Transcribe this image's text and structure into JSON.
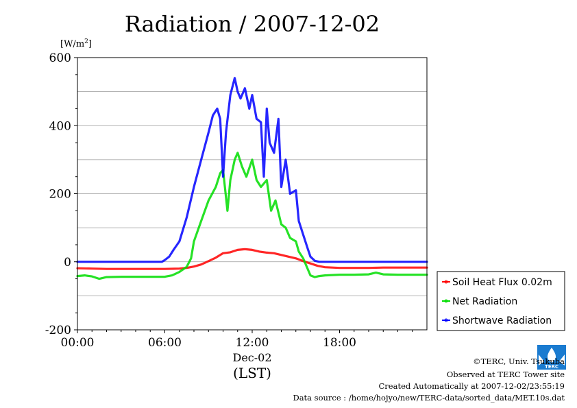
{
  "chart_data": {
    "type": "line",
    "title": "Radiation / 2007-12-02",
    "ylabel": "[W/m",
    "ylabel_sup": "2",
    "ylabel_end": "]",
    "xlabel": "(LST)",
    "x_date_label": "Dec-02",
    "x_tick_labels": [
      "00:00",
      "06:00",
      "12:00",
      "18:00"
    ],
    "y_tick_labels": [
      "600",
      "400",
      "200",
      "0",
      "-200"
    ],
    "xlim": [
      0,
      24
    ],
    "ylim": [
      -200,
      600
    ],
    "grid": "horizontal",
    "legend_position": "right",
    "series": [
      {
        "name": "Soil Heat Flux 0.02m",
        "color": "#ff0000",
        "x": [
          0,
          1,
          2,
          3,
          4,
          5,
          6,
          7,
          7.5,
          8,
          8.5,
          9,
          9.5,
          10,
          10.5,
          11,
          11.5,
          12,
          12.5,
          13,
          13.5,
          14,
          14.5,
          15,
          15.5,
          16,
          16.5,
          17,
          18,
          19,
          20,
          21,
          22,
          23,
          24
        ],
        "y": [
          -19,
          -20,
          -21,
          -21,
          -21,
          -21,
          -21,
          -20,
          -18,
          -14,
          -8,
          2,
          12,
          25,
          28,
          35,
          37,
          35,
          30,
          27,
          25,
          20,
          15,
          10,
          2,
          -5,
          -12,
          -16,
          -18,
          -18,
          -18,
          -17,
          -17,
          -17,
          -17
        ]
      },
      {
        "name": "Net Radiation",
        "color": "#00dd00",
        "x": [
          0,
          0.5,
          1,
          1.5,
          2,
          3,
          4,
          5,
          6,
          6.5,
          7,
          7.5,
          7.8,
          8,
          8.5,
          9,
          9.5,
          9.8,
          10,
          10.3,
          10.5,
          10.8,
          11,
          11.3,
          11.6,
          12,
          12.3,
          12.6,
          13,
          13.3,
          13.6,
          14,
          14.3,
          14.6,
          15,
          15.2,
          15.5,
          15.8,
          16,
          16.3,
          16.6,
          17,
          18,
          19,
          20,
          20.5,
          21,
          22,
          23,
          24
        ],
        "y": [
          -42,
          -40,
          -43,
          -50,
          -45,
          -44,
          -44,
          -44,
          -44,
          -40,
          -30,
          -15,
          10,
          60,
          120,
          180,
          220,
          260,
          270,
          150,
          240,
          300,
          320,
          280,
          250,
          300,
          240,
          220,
          240,
          150,
          180,
          110,
          100,
          70,
          60,
          30,
          10,
          -20,
          -40,
          -45,
          -42,
          -40,
          -38,
          -38,
          -37,
          -32,
          -37,
          -38,
          -38,
          -38
        ]
      },
      {
        "name": "Shortwave Radiation",
        "color": "#0000ff",
        "x": [
          0,
          1,
          2,
          3,
          4,
          5,
          5.8,
          6,
          6.3,
          6.6,
          7,
          7.5,
          8,
          8.5,
          9,
          9.3,
          9.6,
          9.8,
          10,
          10.2,
          10.5,
          10.8,
          11,
          11.2,
          11.5,
          11.8,
          12,
          12.3,
          12.6,
          12.8,
          13,
          13.2,
          13.5,
          13.8,
          14,
          14.3,
          14.6,
          15,
          15.2,
          15.5,
          15.8,
          16,
          16.3,
          16.6,
          17,
          18,
          19,
          20,
          21,
          22,
          23,
          24
        ],
        "y": [
          0,
          0,
          0,
          0,
          0,
          0,
          0,
          5,
          15,
          35,
          60,
          130,
          220,
          300,
          380,
          430,
          450,
          420,
          250,
          380,
          490,
          540,
          500,
          480,
          510,
          450,
          490,
          420,
          410,
          250,
          450,
          350,
          320,
          420,
          220,
          300,
          200,
          210,
          120,
          80,
          40,
          15,
          3,
          0,
          0,
          0,
          0,
          0,
          0,
          0,
          0,
          0
        ]
      }
    ]
  },
  "footer": {
    "copyright": "©TERC, Univ. Tsukuba",
    "observed": "Observed at TERC Tower site",
    "created": "Created Automatically at 2007-12-02/23:55:19",
    "source": "Data source : /home/hojyo/new/TERC-data/sorted_data/MET.10s.dat"
  },
  "logo": {
    "text": "TERC",
    "color": "#1a7bd0"
  }
}
